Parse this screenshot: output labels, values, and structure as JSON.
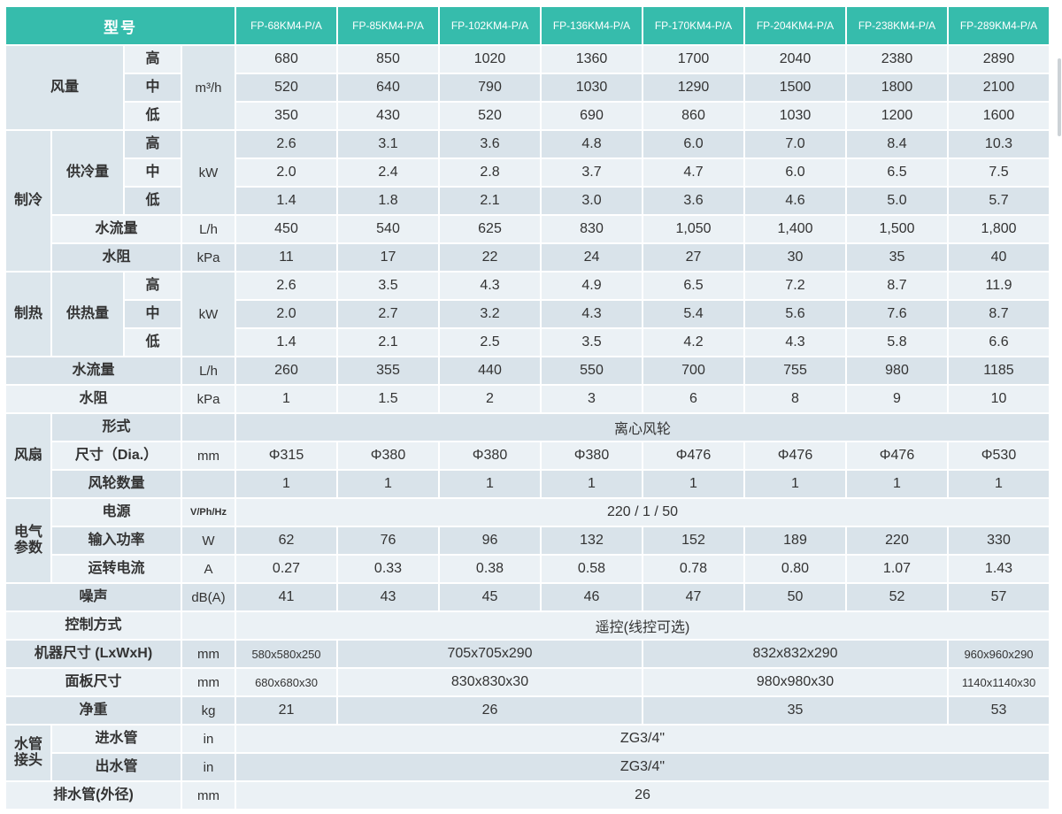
{
  "colors": {
    "accent_teal": "#36bcac",
    "row_light": "#ebf1f5",
    "row_dark": "#d9e3ea",
    "span_cell": "#dce6ec",
    "text": "#333333"
  },
  "header": {
    "corner_label": "型号",
    "models": [
      "FP-68KM4-P/A",
      "FP-85KM4-P/A",
      "FP-102KM4-P/A",
      "FP-136KM4-P/A",
      "FP-170KM4-P/A",
      "FP-204KM4-P/A",
      "FP-238KM4-P/A",
      "FP-289KM4-P/A"
    ]
  },
  "rows": [
    {
      "cells": [
        {
          "t": "风量",
          "cs": 2,
          "rs": 3,
          "k": "label"
        },
        {
          "t": "高",
          "k": "label"
        },
        {
          "t": "m³/h",
          "rs": 3,
          "k": "unit"
        },
        {
          "t": "680",
          "k": "data"
        },
        {
          "t": "850",
          "k": "data"
        },
        {
          "t": "1020",
          "k": "data"
        },
        {
          "t": "1360",
          "k": "data"
        },
        {
          "t": "1700",
          "k": "data"
        },
        {
          "t": "2040",
          "k": "data"
        },
        {
          "t": "2380",
          "k": "data"
        },
        {
          "t": "2890",
          "k": "data"
        }
      ]
    },
    {
      "cells": [
        {
          "t": "中",
          "k": "label"
        },
        {
          "t": "520",
          "k": "data"
        },
        {
          "t": "640",
          "k": "data"
        },
        {
          "t": "790",
          "k": "data"
        },
        {
          "t": "1030",
          "k": "data"
        },
        {
          "t": "1290",
          "k": "data"
        },
        {
          "t": "1500",
          "k": "data"
        },
        {
          "t": "1800",
          "k": "data"
        },
        {
          "t": "2100",
          "k": "data"
        }
      ]
    },
    {
      "cells": [
        {
          "t": "低",
          "k": "label"
        },
        {
          "t": "350",
          "k": "data"
        },
        {
          "t": "430",
          "k": "data"
        },
        {
          "t": "520",
          "k": "data"
        },
        {
          "t": "690",
          "k": "data"
        },
        {
          "t": "860",
          "k": "data"
        },
        {
          "t": "1030",
          "k": "data"
        },
        {
          "t": "1200",
          "k": "data"
        },
        {
          "t": "1600",
          "k": "data"
        }
      ]
    },
    {
      "cells": [
        {
          "t": "制冷",
          "rs": 5,
          "k": "label"
        },
        {
          "t": "供冷量",
          "rs": 3,
          "k": "label"
        },
        {
          "t": "高",
          "k": "label"
        },
        {
          "t": "kW",
          "rs": 3,
          "k": "unit"
        },
        {
          "t": "2.6",
          "k": "data"
        },
        {
          "t": "3.1",
          "k": "data"
        },
        {
          "t": "3.6",
          "k": "data"
        },
        {
          "t": "4.8",
          "k": "data"
        },
        {
          "t": "6.0",
          "k": "data"
        },
        {
          "t": "7.0",
          "k": "data"
        },
        {
          "t": "8.4",
          "k": "data"
        },
        {
          "t": "10.3",
          "k": "data"
        }
      ]
    },
    {
      "cells": [
        {
          "t": "中",
          "k": "label"
        },
        {
          "t": "2.0",
          "k": "data"
        },
        {
          "t": "2.4",
          "k": "data"
        },
        {
          "t": "2.8",
          "k": "data"
        },
        {
          "t": "3.7",
          "k": "data"
        },
        {
          "t": "4.7",
          "k": "data"
        },
        {
          "t": "6.0",
          "k": "data"
        },
        {
          "t": "6.5",
          "k": "data"
        },
        {
          "t": "7.5",
          "k": "data"
        }
      ]
    },
    {
      "cells": [
        {
          "t": "低",
          "k": "label"
        },
        {
          "t": "1.4",
          "k": "data"
        },
        {
          "t": "1.8",
          "k": "data"
        },
        {
          "t": "2.1",
          "k": "data"
        },
        {
          "t": "3.0",
          "k": "data"
        },
        {
          "t": "3.6",
          "k": "data"
        },
        {
          "t": "4.6",
          "k": "data"
        },
        {
          "t": "5.0",
          "k": "data"
        },
        {
          "t": "5.7",
          "k": "data"
        }
      ]
    },
    {
      "cells": [
        {
          "t": "水流量",
          "cs": 2,
          "k": "label"
        },
        {
          "t": "L/h",
          "k": "unit"
        },
        {
          "t": "450",
          "k": "data"
        },
        {
          "t": "540",
          "k": "data"
        },
        {
          "t": "625",
          "k": "data"
        },
        {
          "t": "830",
          "k": "data"
        },
        {
          "t": "1,050",
          "k": "data"
        },
        {
          "t": "1,400",
          "k": "data"
        },
        {
          "t": "1,500",
          "k": "data"
        },
        {
          "t": "1,800",
          "k": "data"
        }
      ]
    },
    {
      "cells": [
        {
          "t": "水阻",
          "cs": 2,
          "k": "label"
        },
        {
          "t": "kPa",
          "k": "unit"
        },
        {
          "t": "11",
          "k": "data"
        },
        {
          "t": "17",
          "k": "data"
        },
        {
          "t": "22",
          "k": "data"
        },
        {
          "t": "24",
          "k": "data"
        },
        {
          "t": "27",
          "k": "data"
        },
        {
          "t": "30",
          "k": "data"
        },
        {
          "t": "35",
          "k": "data"
        },
        {
          "t": "40",
          "k": "data"
        }
      ]
    },
    {
      "cells": [
        {
          "t": "制热",
          "rs": 3,
          "k": "label"
        },
        {
          "t": "供热量",
          "rs": 3,
          "k": "label"
        },
        {
          "t": "高",
          "k": "label"
        },
        {
          "t": "kW",
          "rs": 3,
          "k": "unit"
        },
        {
          "t": "2.6",
          "k": "data"
        },
        {
          "t": "3.5",
          "k": "data"
        },
        {
          "t": "4.3",
          "k": "data"
        },
        {
          "t": "4.9",
          "k": "data"
        },
        {
          "t": "6.5",
          "k": "data"
        },
        {
          "t": "7.2",
          "k": "data"
        },
        {
          "t": "8.7",
          "k": "data"
        },
        {
          "t": "11.9",
          "k": "data"
        }
      ]
    },
    {
      "cells": [
        {
          "t": "中",
          "k": "label"
        },
        {
          "t": "2.0",
          "k": "data"
        },
        {
          "t": "2.7",
          "k": "data"
        },
        {
          "t": "3.2",
          "k": "data"
        },
        {
          "t": "4.3",
          "k": "data"
        },
        {
          "t": "5.4",
          "k": "data"
        },
        {
          "t": "5.6",
          "k": "data"
        },
        {
          "t": "7.6",
          "k": "data"
        },
        {
          "t": "8.7",
          "k": "data"
        }
      ]
    },
    {
      "cells": [
        {
          "t": "低",
          "k": "label"
        },
        {
          "t": "1.4",
          "k": "data"
        },
        {
          "t": "2.1",
          "k": "data"
        },
        {
          "t": "2.5",
          "k": "data"
        },
        {
          "t": "3.5",
          "k": "data"
        },
        {
          "t": "4.2",
          "k": "data"
        },
        {
          "t": "4.3",
          "k": "data"
        },
        {
          "t": "5.8",
          "k": "data"
        },
        {
          "t": "6.6",
          "k": "data"
        }
      ]
    },
    {
      "cells": [
        {
          "t": "水流量",
          "cs": 3,
          "k": "label"
        },
        {
          "t": "L/h",
          "k": "unit"
        },
        {
          "t": "260",
          "k": "data"
        },
        {
          "t": "355",
          "k": "data"
        },
        {
          "t": "440",
          "k": "data"
        },
        {
          "t": "550",
          "k": "data"
        },
        {
          "t": "700",
          "k": "data"
        },
        {
          "t": "755",
          "k": "data"
        },
        {
          "t": "980",
          "k": "data"
        },
        {
          "t": "1185",
          "k": "data"
        }
      ]
    },
    {
      "cells": [
        {
          "t": "水阻",
          "cs": 3,
          "k": "label"
        },
        {
          "t": "kPa",
          "k": "unit"
        },
        {
          "t": "1",
          "k": "data"
        },
        {
          "t": "1.5",
          "k": "data"
        },
        {
          "t": "2",
          "k": "data"
        },
        {
          "t": "3",
          "k": "data"
        },
        {
          "t": "6",
          "k": "data"
        },
        {
          "t": "8",
          "k": "data"
        },
        {
          "t": "9",
          "k": "data"
        },
        {
          "t": "10",
          "k": "data"
        }
      ]
    },
    {
      "cells": [
        {
          "t": "风扇",
          "rs": 3,
          "k": "label"
        },
        {
          "t": "形式",
          "cs": 2,
          "k": "label"
        },
        {
          "t": "",
          "k": "unit"
        },
        {
          "t": "离心风轮",
          "cs": 8,
          "k": "data"
        }
      ]
    },
    {
      "cells": [
        {
          "t": "尺寸（Dia.）",
          "cs": 2,
          "k": "label"
        },
        {
          "t": "mm",
          "k": "unit"
        },
        {
          "t": "Φ315",
          "k": "data"
        },
        {
          "t": "Φ380",
          "k": "data"
        },
        {
          "t": "Φ380",
          "k": "data"
        },
        {
          "t": "Φ380",
          "k": "data"
        },
        {
          "t": "Φ476",
          "k": "data"
        },
        {
          "t": "Φ476",
          "k": "data"
        },
        {
          "t": "Φ476",
          "k": "data"
        },
        {
          "t": "Φ530",
          "k": "data"
        }
      ]
    },
    {
      "cells": [
        {
          "t": "风轮数量",
          "cs": 2,
          "k": "label"
        },
        {
          "t": "",
          "k": "unit"
        },
        {
          "t": "1",
          "k": "data"
        },
        {
          "t": "1",
          "k": "data"
        },
        {
          "t": "1",
          "k": "data"
        },
        {
          "t": "1",
          "k": "data"
        },
        {
          "t": "1",
          "k": "data"
        },
        {
          "t": "1",
          "k": "data"
        },
        {
          "t": "1",
          "k": "data"
        },
        {
          "t": "1",
          "k": "data"
        }
      ]
    },
    {
      "cells": [
        {
          "t": "电气\n参数",
          "rs": 3,
          "k": "label"
        },
        {
          "t": "电源",
          "cs": 2,
          "k": "label"
        },
        {
          "t": "V/Ph/Hz",
          "k": "unit-sm"
        },
        {
          "t": "220 / 1 / 50",
          "cs": 8,
          "k": "data"
        }
      ]
    },
    {
      "cells": [
        {
          "t": "输入功率",
          "cs": 2,
          "k": "label"
        },
        {
          "t": "W",
          "k": "unit"
        },
        {
          "t": "62",
          "k": "data"
        },
        {
          "t": "76",
          "k": "data"
        },
        {
          "t": "96",
          "k": "data"
        },
        {
          "t": "132",
          "k": "data"
        },
        {
          "t": "152",
          "k": "data"
        },
        {
          "t": "189",
          "k": "data"
        },
        {
          "t": "220",
          "k": "data"
        },
        {
          "t": "330",
          "k": "data"
        }
      ]
    },
    {
      "cells": [
        {
          "t": "运转电流",
          "cs": 2,
          "k": "label"
        },
        {
          "t": "A",
          "k": "unit"
        },
        {
          "t": "0.27",
          "k": "data"
        },
        {
          "t": "0.33",
          "k": "data"
        },
        {
          "t": "0.38",
          "k": "data"
        },
        {
          "t": "0.58",
          "k": "data"
        },
        {
          "t": "0.78",
          "k": "data"
        },
        {
          "t": "0.80",
          "k": "data"
        },
        {
          "t": "1.07",
          "k": "data"
        },
        {
          "t": "1.43",
          "k": "data"
        }
      ]
    },
    {
      "cells": [
        {
          "t": "噪声",
          "cs": 3,
          "k": "label"
        },
        {
          "t": "dB(A)",
          "k": "unit"
        },
        {
          "t": "41",
          "k": "data"
        },
        {
          "t": "43",
          "k": "data"
        },
        {
          "t": "45",
          "k": "data"
        },
        {
          "t": "46",
          "k": "data"
        },
        {
          "t": "47",
          "k": "data"
        },
        {
          "t": "50",
          "k": "data"
        },
        {
          "t": "52",
          "k": "data"
        },
        {
          "t": "57",
          "k": "data"
        }
      ]
    },
    {
      "cells": [
        {
          "t": "控制方式",
          "cs": 3,
          "k": "label"
        },
        {
          "t": "",
          "k": "unit"
        },
        {
          "t": "遥控(线控可选)",
          "cs": 8,
          "k": "data"
        }
      ]
    },
    {
      "cells": [
        {
          "t": "机器尺寸 (LxWxH)",
          "cs": 3,
          "k": "label"
        },
        {
          "t": "mm",
          "k": "unit"
        },
        {
          "t": "580x580x250",
          "k": "data-sm"
        },
        {
          "t": "705x705x290",
          "cs": 3,
          "k": "data"
        },
        {
          "t": "832x832x290",
          "cs": 3,
          "k": "data"
        },
        {
          "t": "960x960x290",
          "k": "data-sm"
        }
      ]
    },
    {
      "cells": [
        {
          "t": "面板尺寸",
          "cs": 3,
          "k": "label"
        },
        {
          "t": "mm",
          "k": "unit"
        },
        {
          "t": "680x680x30",
          "k": "data-sm"
        },
        {
          "t": "830x830x30",
          "cs": 3,
          "k": "data"
        },
        {
          "t": "980x980x30",
          "cs": 3,
          "k": "data"
        },
        {
          "t": "1140x1140x30",
          "k": "data-sm"
        }
      ]
    },
    {
      "cells": [
        {
          "t": "净重",
          "cs": 3,
          "k": "label"
        },
        {
          "t": "kg",
          "k": "unit"
        },
        {
          "t": "21",
          "k": "data"
        },
        {
          "t": "26",
          "cs": 3,
          "k": "data"
        },
        {
          "t": "35",
          "cs": 3,
          "k": "data"
        },
        {
          "t": "53",
          "k": "data"
        }
      ]
    },
    {
      "cells": [
        {
          "t": "水管\n接头",
          "rs": 2,
          "k": "label"
        },
        {
          "t": "进水管",
          "cs": 2,
          "k": "label"
        },
        {
          "t": "in",
          "k": "unit"
        },
        {
          "t": "ZG3/4\"",
          "cs": 8,
          "k": "data"
        }
      ]
    },
    {
      "cells": [
        {
          "t": "出水管",
          "cs": 2,
          "k": "label"
        },
        {
          "t": "in",
          "k": "unit"
        },
        {
          "t": "ZG3/4\"",
          "cs": 8,
          "k": "data"
        }
      ]
    },
    {
      "cells": [
        {
          "t": "排水管(外径)",
          "cs": 3,
          "k": "label"
        },
        {
          "t": "mm",
          "k": "unit"
        },
        {
          "t": "26",
          "cs": 8,
          "k": "data"
        }
      ]
    }
  ]
}
